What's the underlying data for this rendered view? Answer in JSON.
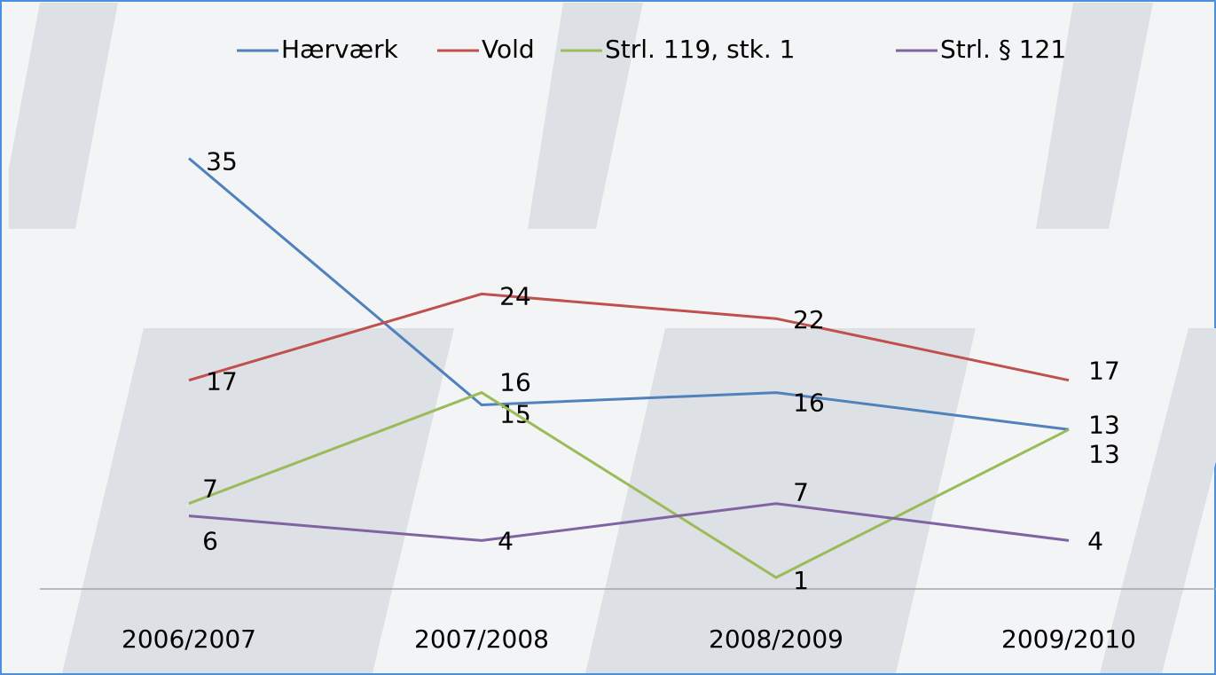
{
  "chart_data": {
    "type": "line",
    "categories": [
      "2006/2007",
      "2007/2008",
      "2008/2009",
      "2009/2010"
    ],
    "series": [
      {
        "name": "Hærværk",
        "color": "#4f81bd",
        "values": [
          35,
          15,
          16,
          13
        ]
      },
      {
        "name": "Vold",
        "color": "#c0504d",
        "values": [
          17,
          24,
          22,
          17
        ]
      },
      {
        "name": "Strl. 119, stk. 1",
        "color": "#9bbb59",
        "values": [
          7,
          16,
          1,
          13
        ]
      },
      {
        "name": "Strl. § 121",
        "color": "#8064a2",
        "values": [
          6,
          4,
          7,
          4
        ]
      }
    ],
    "ylim": [
      0,
      40
    ]
  }
}
